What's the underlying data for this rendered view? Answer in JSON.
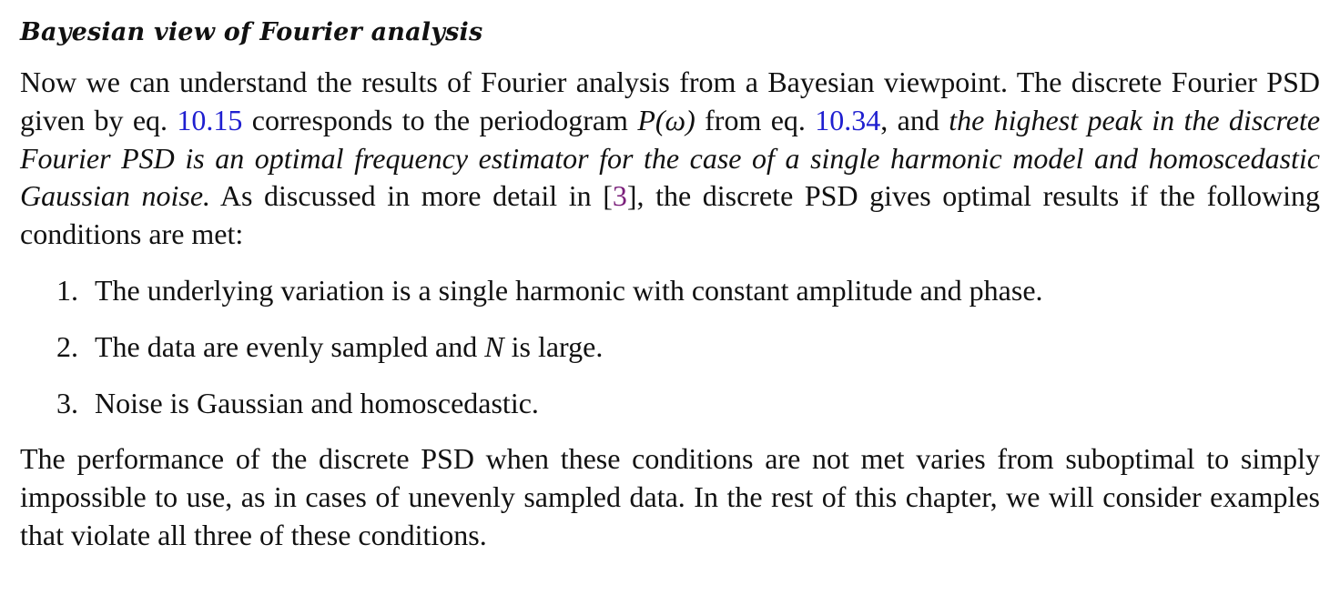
{
  "section": {
    "title": "Bayesian view of Fourier analysis"
  },
  "para1": {
    "t1": "Now we can understand the results of Fourier analysis from a Bayesian viewpoint. The discrete Fourier PSD given by eq. ",
    "ref1": "10.15",
    "t2": " corresponds to the periodogram ",
    "math": "P(ω)",
    "t3": " from eq. ",
    "ref2": "10.34",
    "t4": ", and ",
    "italic": "the highest peak in the discrete Fourier PSD is an optimal frequency estimator for the case of a single harmonic model and homoscedastic Gaussian noise.",
    "t5": " As discussed in more detail in [",
    "cite": "3",
    "t6": "], the discrete PSD gives optimal results if the following conditions are met:"
  },
  "conditions": [
    {
      "num": "1.",
      "pre": "The underlying variation is a single harmonic with constant amplitude and phase.",
      "math": "",
      "post": ""
    },
    {
      "num": "2.",
      "pre": "The data are evenly sampled and ",
      "math": "N",
      "post": " is large."
    },
    {
      "num": "3.",
      "pre": "Noise is Gaussian and homoscedastic.",
      "math": "",
      "post": ""
    }
  ],
  "para2": {
    "text": "The performance of the discrete PSD when these conditions are not met varies from suboptimal to simply impossible to use, as in cases of unevenly sampled data. In the rest of this chapter, we will consider examples that violate all three of these conditions."
  },
  "colors": {
    "link": "#1f1fd0",
    "cite": "#7a1f7a",
    "text": "#111111"
  }
}
